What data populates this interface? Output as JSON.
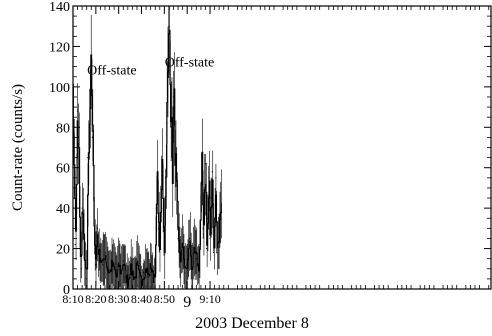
{
  "chart_data": {
    "type": "line",
    "title": "",
    "xlabel": "2003 December 8",
    "ylabel": "Count-rate (counts/s)",
    "xlim": [
      490,
      673
    ],
    "ylim": [
      0,
      140
    ],
    "grid": false,
    "legend": "none",
    "line_color": "#000000",
    "y_ticks": [
      {
        "value": 0,
        "label": "0"
      },
      {
        "value": 20,
        "label": "20"
      },
      {
        "value": 40,
        "label": "40"
      },
      {
        "value": 60,
        "label": "60"
      },
      {
        "value": 80,
        "label": "80"
      },
      {
        "value": 100,
        "label": "100"
      },
      {
        "value": 120,
        "label": "120"
      },
      {
        "value": 140,
        "label": "140"
      }
    ],
    "x_ticks": [
      {
        "value": 490,
        "label": "8:10",
        "big": false
      },
      {
        "value": 500,
        "label": "8:20",
        "big": false
      },
      {
        "value": 510,
        "label": "8:30",
        "big": false
      },
      {
        "value": 520,
        "label": "8:40",
        "big": false
      },
      {
        "value": 530,
        "label": "8:50",
        "big": false
      },
      {
        "value": 540,
        "label": "9",
        "big": true
      },
      {
        "value": 550,
        "label": "9:10",
        "big": false
      }
    ],
    "annotations": [
      {
        "text": "Off-state",
        "x": 507,
        "y": 106
      },
      {
        "text": "Off-state",
        "x": 541,
        "y": 110
      }
    ],
    "series": [
      {
        "x": [
          484.5,
          485.5,
          486.5,
          487.0,
          487.5,
          488.0,
          488.5,
          489.0,
          489.5,
          490.0,
          490.5,
          491.0,
          491.5,
          492.0,
          492.5,
          493.0,
          493.5,
          494.0,
          495.0,
          496.0,
          496.5,
          497.0,
          497.5,
          498.0,
          498.5,
          499.0,
          499.5,
          500.0,
          500.5,
          501.0,
          502.0,
          503.0,
          504.0,
          505.0,
          506.0,
          507.0,
          508.0,
          509.0,
          510.0,
          511.0,
          512.0,
          513.0,
          514.0,
          515.0,
          516.0,
          517.0,
          518.0,
          519.0,
          520.0,
          521.0,
          522.0,
          523.0,
          524.0,
          525.0,
          526.0,
          526.5,
          527.0,
          527.5,
          528.0,
          528.5,
          529.0,
          529.5,
          530.0,
          530.5,
          531.0,
          531.5,
          532.0,
          532.5,
          533.0,
          533.5,
          534.0,
          535.0,
          536.0,
          537.0,
          538.0,
          539.0,
          540.0,
          541.0,
          542.0,
          543.0,
          544.0,
          545.0,
          545.5,
          546.0,
          546.5,
          547.0,
          547.5,
          548.0,
          548.5,
          549.0,
          549.5,
          550.0,
          550.5,
          551.0,
          551.5,
          552.0,
          552.5,
          553.0,
          554.0,
          555.0
        ],
        "y": [
          50,
          18,
          12,
          55,
          68,
          85,
          60,
          15,
          45,
          80,
          72,
          22,
          45,
          88,
          75,
          20,
          10,
          40,
          15,
          5,
          65,
          80,
          98,
          102,
          75,
          45,
          25,
          12,
          30,
          18,
          15,
          12,
          18,
          10,
          8,
          12,
          10,
          6,
          12,
          8,
          14,
          6,
          4,
          10,
          8,
          5,
          12,
          6,
          4,
          8,
          10,
          6,
          12,
          5,
          10,
          40,
          55,
          30,
          20,
          45,
          62,
          40,
          20,
          55,
          82,
          105,
          130,
          120,
          80,
          60,
          95,
          55,
          25,
          15,
          22,
          8,
          12,
          25,
          10,
          18,
          15,
          10,
          22,
          45,
          60,
          30,
          50,
          62,
          20,
          35,
          55,
          25,
          45,
          58,
          18,
          30,
          55,
          18,
          30,
          38
        ]
      }
    ]
  }
}
